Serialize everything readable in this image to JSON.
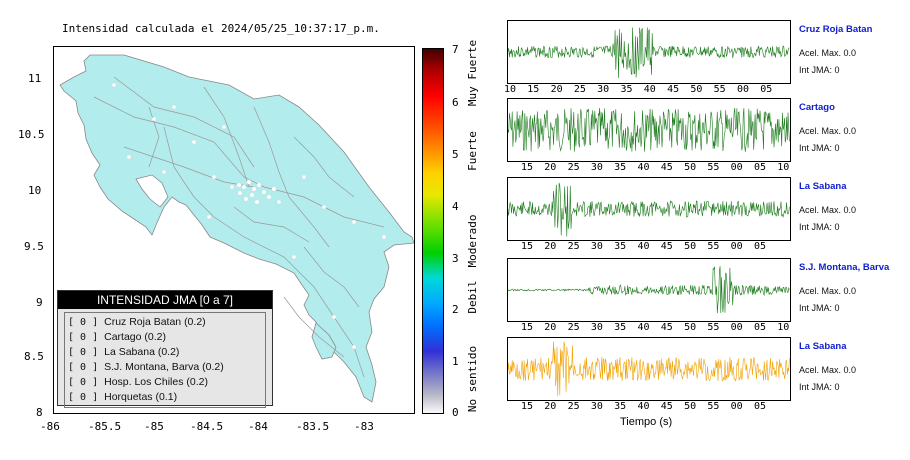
{
  "map": {
    "title": "Intensidad calculada el 2024/05/25_10:37:17_p.m.",
    "lat_ticks": [
      "11",
      "10.5",
      "10",
      "9.5",
      "9",
      "8.5",
      "8"
    ],
    "lon_ticks": [
      "-86",
      "-85.5",
      "-85",
      "-84.5",
      "-84",
      "-83.5",
      "-83"
    ],
    "land_color": "#b3ecec"
  },
  "legend": {
    "title": "INTENSIDAD JMA [0 a 7]",
    "items": [
      {
        "value": "[ 0 ]",
        "name": "Cruz Roja Batan (0.2)"
      },
      {
        "value": "[ 0 ]",
        "name": "Cartago (0.2)"
      },
      {
        "value": "[ 0 ]",
        "name": "La Sabana (0.2)"
      },
      {
        "value": "[ 0 ]",
        "name": "S.J. Montana, Barva (0.2)"
      },
      {
        "value": "[ 0 ]",
        "name": "Hosp. Los Chiles (0.2)"
      },
      {
        "value": "[ 0 ]",
        "name": "Horquetas (0.1)"
      }
    ]
  },
  "colorbar": {
    "ticks": [
      "7",
      "6",
      "5",
      "4",
      "3",
      "2",
      "1",
      "0"
    ],
    "labels": [
      "Muy Fuerte",
      "Fuerte",
      "Moderado",
      "Debil",
      "No sentido"
    ]
  },
  "stations": [
    {
      "name": "Cruz Roja Batan",
      "accel": "Acel. Max. 0.0",
      "int": "Int JMA: 0",
      "color": "#1a7a1a",
      "ticks": [
        "10",
        "15",
        "20",
        "25",
        "30",
        "35",
        "40",
        "45",
        "50",
        "55",
        "00",
        "05"
      ]
    },
    {
      "name": "Cartago",
      "accel": "Acel. Max. 0.0",
      "int": "Int JMA: 0",
      "color": "#1a7a1a",
      "ticks": [
        "15",
        "20",
        "25",
        "30",
        "35",
        "40",
        "45",
        "50",
        "55",
        "00",
        "05",
        "10"
      ]
    },
    {
      "name": "La Sabana",
      "accel": "Acel. Max. 0.0",
      "int": "Int JMA: 0",
      "color": "#1a7a1a",
      "ticks": [
        "15",
        "20",
        "25",
        "30",
        "35",
        "40",
        "45",
        "50",
        "55",
        "00",
        "05"
      ]
    },
    {
      "name": "S.J. Montana, Barva",
      "accel": "Acel. Max. 0.0",
      "int": "Int JMA: 0",
      "color": "#1a7a1a",
      "ticks": [
        "15",
        "20",
        "25",
        "30",
        "35",
        "40",
        "45",
        "50",
        "55",
        "00",
        "05",
        "10"
      ]
    },
    {
      "name": "La Sabana",
      "accel": "Acel. Max. 0.0",
      "int": "Int JMA: 0",
      "color": "#f0a000",
      "ticks": [
        "15",
        "20",
        "25",
        "30",
        "35",
        "40",
        "45",
        "50",
        "55",
        "00",
        "05"
      ]
    }
  ],
  "time_axis_label": "Tiempo (s)"
}
